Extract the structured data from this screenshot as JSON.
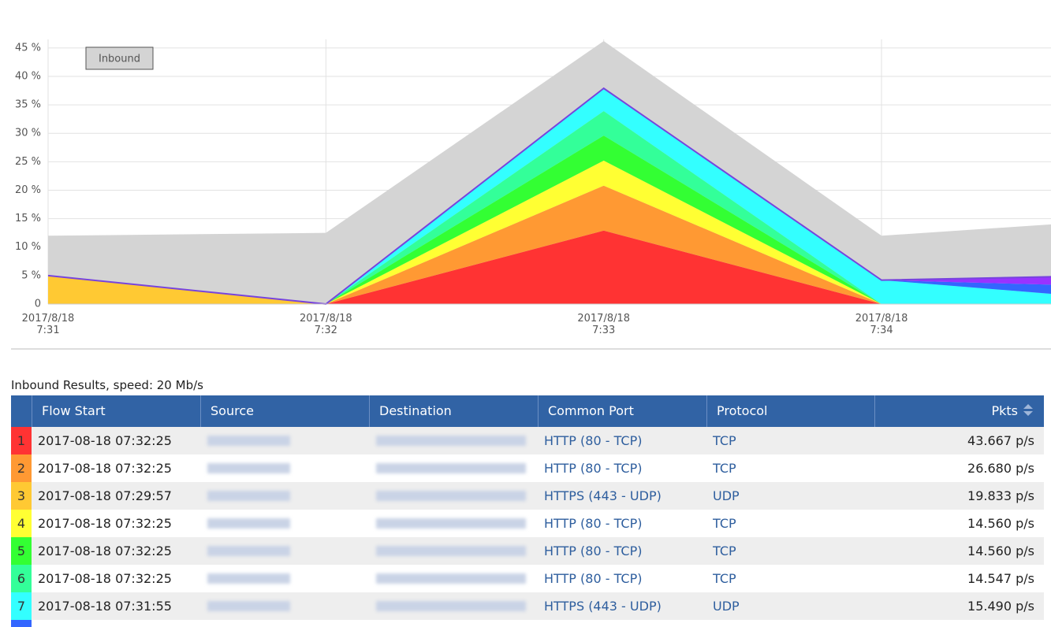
{
  "chart_data": {
    "type": "stacked_area",
    "x": [
      0,
      1,
      2,
      3,
      3.61
    ],
    "xlim": [
      0,
      3.61
    ],
    "xticks": [
      {
        "value": 0,
        "label": "2017/8/18\n7:31"
      },
      {
        "value": 1,
        "label": "2017/8/18\n7:32"
      },
      {
        "value": 2,
        "label": "2017/8/18\n7:33"
      },
      {
        "value": 3,
        "label": "2017/8/18\n7:34"
      }
    ],
    "ylim": [
      0,
      46.5
    ],
    "yticks": [
      0,
      {
        "value": 5,
        "label": "5 %"
      },
      {
        "value": 10,
        "label": "10 %"
      },
      {
        "value": 15,
        "label": "15 %"
      },
      {
        "value": 20,
        "label": "20 %"
      },
      {
        "value": 25,
        "label": "25 %"
      },
      {
        "value": 30,
        "label": "30 %"
      },
      {
        "value": 35,
        "label": "35 %"
      },
      {
        "value": 40,
        "label": "40 %"
      },
      {
        "value": 45,
        "label": "45 %"
      }
    ],
    "grid": true,
    "legend": "top-left",
    "outline_color": "#7744dd",
    "total": {
      "name": "Inbound",
      "color": "#d4d4d4",
      "values": [
        12.0,
        12.5,
        46.2,
        12.0,
        14.0
      ]
    },
    "series": [
      {
        "color": "#ff3333",
        "values": [
          0,
          0,
          12.9,
          0,
          0
        ]
      },
      {
        "color": "#ff9933",
        "values": [
          0,
          0,
          7.9,
          0,
          0
        ]
      },
      {
        "color": "#ffc933",
        "values": [
          5.0,
          0,
          0,
          0,
          0
        ]
      },
      {
        "color": "#ffff33",
        "values": [
          0,
          0,
          4.4,
          0,
          0
        ]
      },
      {
        "color": "#33ff33",
        "values": [
          0,
          0,
          4.4,
          0,
          0
        ]
      },
      {
        "color": "#33ff99",
        "values": [
          0,
          0,
          4.3,
          0,
          0
        ]
      },
      {
        "color": "#33ffff",
        "values": [
          0,
          0,
          4.0,
          4.2,
          1.8
        ]
      },
      {
        "color": "#3366ff",
        "values": [
          0,
          0,
          0,
          0,
          1.6
        ]
      },
      {
        "color": "#9933ff",
        "values": [
          0,
          0,
          0,
          0,
          1.4
        ]
      }
    ]
  },
  "table": {
    "title": "Inbound Results, speed: 20 Mb/s",
    "columns": [
      "Flow Start",
      "Source",
      "Destination",
      "Common Port",
      "Protocol",
      "Pkts"
    ],
    "rows": [
      [
        "1",
        "2017-08-18 07:32:25",
        "HTTP (80 - TCP)",
        "TCP",
        "43.667 p/s"
      ],
      [
        "2",
        "2017-08-18 07:32:25",
        "HTTP (80 - TCP)",
        "TCP",
        "26.680 p/s"
      ],
      [
        "3",
        "2017-08-18 07:29:57",
        "HTTPS (443 - UDP)",
        "UDP",
        "19.833 p/s"
      ],
      [
        "4",
        "2017-08-18 07:32:25",
        "HTTP (80 - TCP)",
        "TCP",
        "14.560 p/s"
      ],
      [
        "5",
        "2017-08-18 07:32:25",
        "HTTP (80 - TCP)",
        "TCP",
        "14.560 p/s"
      ],
      [
        "6",
        "2017-08-18 07:32:25",
        "HTTP (80 - TCP)",
        "TCP",
        "14.547 p/s"
      ],
      [
        "7",
        "2017-08-18 07:31:55",
        "HTTPS (443 - UDP)",
        "UDP",
        "15.490 p/s"
      ]
    ]
  }
}
